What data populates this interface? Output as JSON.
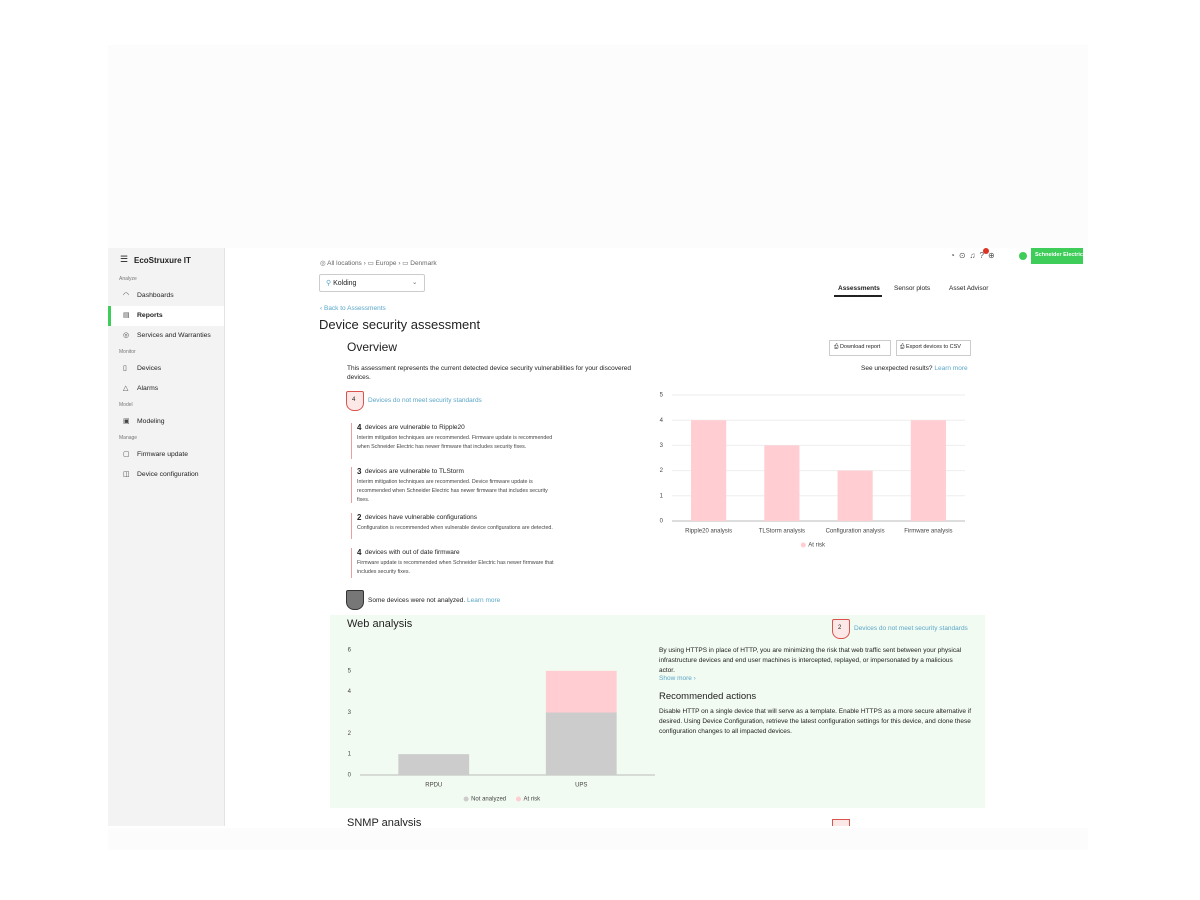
{
  "sidebar": {
    "logo": "EcoStruxure IT",
    "sections": [
      {
        "title": "Analyze",
        "items": [
          "Dashboards",
          "Reports",
          "Services and Warranties"
        ]
      },
      {
        "title": "Monitor",
        "items": [
          "Devices",
          "Alarms"
        ]
      },
      {
        "title": "Model",
        "items": [
          "Modeling"
        ]
      },
      {
        "title": "Manage",
        "items": [
          "Firmware update",
          "Device configuration"
        ]
      }
    ]
  },
  "header": {
    "breadcrumb": [
      "All locations",
      "Europe",
      "Denmark"
    ],
    "location": "Kolding",
    "tabs": [
      "Assessments",
      "Sensor plots",
      "Asset Advisor"
    ],
    "brand": "Schneider Electric"
  },
  "page": {
    "back": "Back to Assessments",
    "title": "Device security assessment"
  },
  "overview": {
    "title": "Overview",
    "buttons": [
      "Download report",
      "Export devices to CSV"
    ],
    "description": "This assessment represents the current detected device security vulnerabilities for your discovered devices.",
    "unexpected": "See unexpected results?",
    "learn_more": "Learn more",
    "badge": "4",
    "badge_text": "Devices do not meet security standards",
    "items": [
      {
        "count": "4",
        "label": "devices are vulnerable to Ripple20",
        "text": "Interim mitigation techniques are recommended. Firmware update is recommended when Schneider Electric has newer firmware that includes security fixes."
      },
      {
        "count": "3",
        "label": "devices are vulnerable to TLStorm",
        "text": "Interim mitigation techniques are recommended. Device firmware update is recommended when Schneider Electric has newer firmware that includes security fixes."
      },
      {
        "count": "2",
        "label": "devices have vulnerable configurations",
        "text": "Configuration is recommended when vulnerable device configurations are detected."
      },
      {
        "count": "4",
        "label": "devices with out of date firmware",
        "text": "Firmware update is recommended when Schneider Electric has newer firmware that includes security fixes."
      }
    ],
    "not_analyzed": "Some devices were not analyzed.",
    "not_analyzed_link": "Learn more"
  },
  "web_analysis": {
    "title": "Web analysis",
    "badge": "2",
    "badge_text": "Devices do not meet security standards",
    "text": "By using HTTPS in place of HTTP, you are minimizing the risk that web traffic sent between your physical infrastructure devices and end user machines is intercepted, replayed, or impersonated by a malicious actor.",
    "show_more": "Show more",
    "actions_title": "Recommended actions",
    "actions": "Disable HTTP on a single device that will serve as a template. Enable HTTPS as a more secure alternative if desired. Using Device Configuration, retrieve the latest configuration settings for this device, and clone these configuration changes to all impacted devices."
  },
  "snmp": {
    "title": "SNMP analysis"
  },
  "chart_data": [
    {
      "type": "bar",
      "stacked": false,
      "categories": [
        "Ripple20 analysis",
        "TLStorm analysis",
        "Configuration analysis",
        "Firmware analysis"
      ],
      "series": [
        {
          "name": "At risk",
          "color": "#ffcdd2",
          "values": [
            4,
            3,
            2,
            4
          ]
        }
      ],
      "ylim": [
        0,
        5
      ],
      "yticks": [
        0,
        1,
        2,
        3,
        4,
        5
      ],
      "grid": true
    },
    {
      "type": "bar",
      "stacked": true,
      "categories": [
        "RPDU",
        "UPS"
      ],
      "series": [
        {
          "name": "Not analyzed",
          "color": "#cccccc",
          "values": [
            1,
            3
          ]
        },
        {
          "name": "At risk",
          "color": "#ffcdd2",
          "values": [
            0,
            2
          ]
        }
      ],
      "ylim": [
        0,
        6
      ],
      "yticks": [
        0,
        1,
        2,
        3,
        4,
        5,
        6
      ],
      "grid": false
    }
  ]
}
